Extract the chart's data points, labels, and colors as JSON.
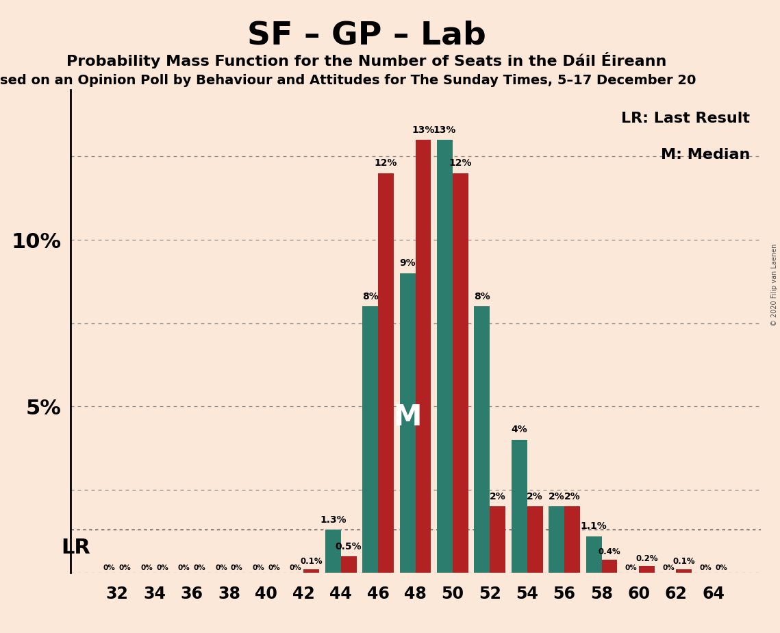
{
  "title": "SF – GP – Lab",
  "subtitle": "Probability Mass Function for the Number of Seats in the Dáil Éireann",
  "subtitle2": "sed on an Opinion Poll by Behaviour and Attitudes for The Sunday Times, 5–17 December 20",
  "copyright": "© 2020 Filip van Laenen",
  "background_color": "#fce8d8",
  "teal_color": "#2d7d6e",
  "red_color": "#b22222",
  "seats": [
    32,
    34,
    36,
    38,
    40,
    42,
    44,
    46,
    48,
    50,
    52,
    54,
    56,
    58,
    60,
    62,
    64
  ],
  "teal_values": [
    0.0,
    0.0,
    0.0,
    0.0,
    0.0,
    0.0,
    1.3,
    8.0,
    9.0,
    13.0,
    8.0,
    4.0,
    2.0,
    1.1,
    0.0,
    0.0,
    0.0
  ],
  "red_values": [
    0.0,
    0.0,
    0.0,
    0.0,
    0.0,
    0.1,
    0.5,
    12.0,
    13.0,
    12.0,
    2.0,
    2.0,
    2.0,
    0.4,
    0.2,
    0.1,
    0.0
  ],
  "teal_labels": [
    "0%",
    "0%",
    "0%",
    "0%",
    "0%",
    "0%",
    "1.3%",
    "8%",
    "9%",
    "13%",
    "8%",
    "4%",
    "2%",
    "1.1%",
    "0%",
    "0%",
    "0%"
  ],
  "red_labels": [
    "0%",
    "0%",
    "0%",
    "0%",
    "0%",
    "0.1%",
    "0.5%",
    "12%",
    "13%",
    "12%",
    "2%",
    "2%",
    "2%",
    "0.4%",
    "0.2%",
    "0.1%",
    "0%"
  ],
  "median_seat": 48,
  "lr_seat_idx": 6,
  "ylim": [
    0,
    14.5
  ],
  "yticks": [
    0,
    2.5,
    5.0,
    7.5,
    10.0,
    12.5
  ],
  "ytick_labels": [
    "",
    "",
    "5%",
    "",
    "10%",
    ""
  ],
  "legend_lr": "LR: Last Result",
  "legend_m": "M: Median",
  "lr_label": "LR",
  "m_label": "M"
}
